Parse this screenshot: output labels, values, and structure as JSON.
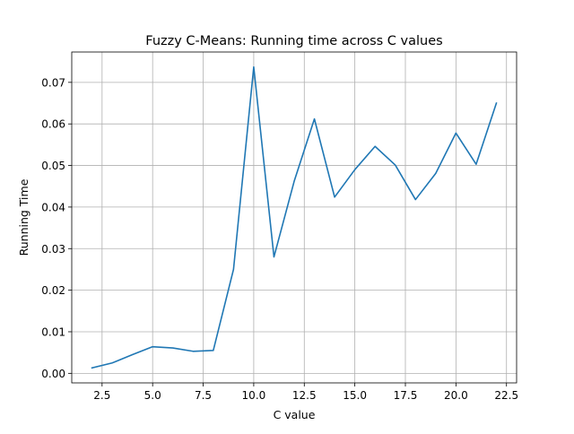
{
  "chart_data": {
    "type": "line",
    "title": "Fuzzy C-Means: Running time across C values",
    "xlabel": "C value",
    "ylabel": "Running Time",
    "xlim": [
      1.0,
      23.0
    ],
    "ylim": [
      -0.0023,
      0.0773
    ],
    "xticks": [
      2.5,
      5.0,
      7.5,
      10.0,
      12.5,
      15.0,
      17.5,
      20.0,
      22.5
    ],
    "xtick_labels": [
      "2.5",
      "5.0",
      "7.5",
      "10.0",
      "12.5",
      "15.0",
      "17.5",
      "20.0",
      "22.5"
    ],
    "yticks": [
      0.0,
      0.01,
      0.02,
      0.03,
      0.04,
      0.05,
      0.06,
      0.07
    ],
    "ytick_labels": [
      "0.00",
      "0.01",
      "0.02",
      "0.03",
      "0.04",
      "0.05",
      "0.06",
      "0.07"
    ],
    "grid": true,
    "series": [
      {
        "color": "#1f77b4",
        "x": [
          2,
          3,
          4,
          5,
          6,
          7,
          8,
          9,
          10,
          11,
          12,
          13,
          14,
          15,
          16,
          17,
          18,
          19,
          20,
          21,
          22
        ],
        "y": [
          0.0013,
          0.0025,
          0.0045,
          0.0064,
          0.0061,
          0.0053,
          0.0055,
          0.025,
          0.0737,
          0.028,
          0.0462,
          0.0612,
          0.0424,
          0.049,
          0.0546,
          0.0501,
          0.0418,
          0.0481,
          0.0578,
          0.0503,
          0.065
        ]
      }
    ]
  }
}
